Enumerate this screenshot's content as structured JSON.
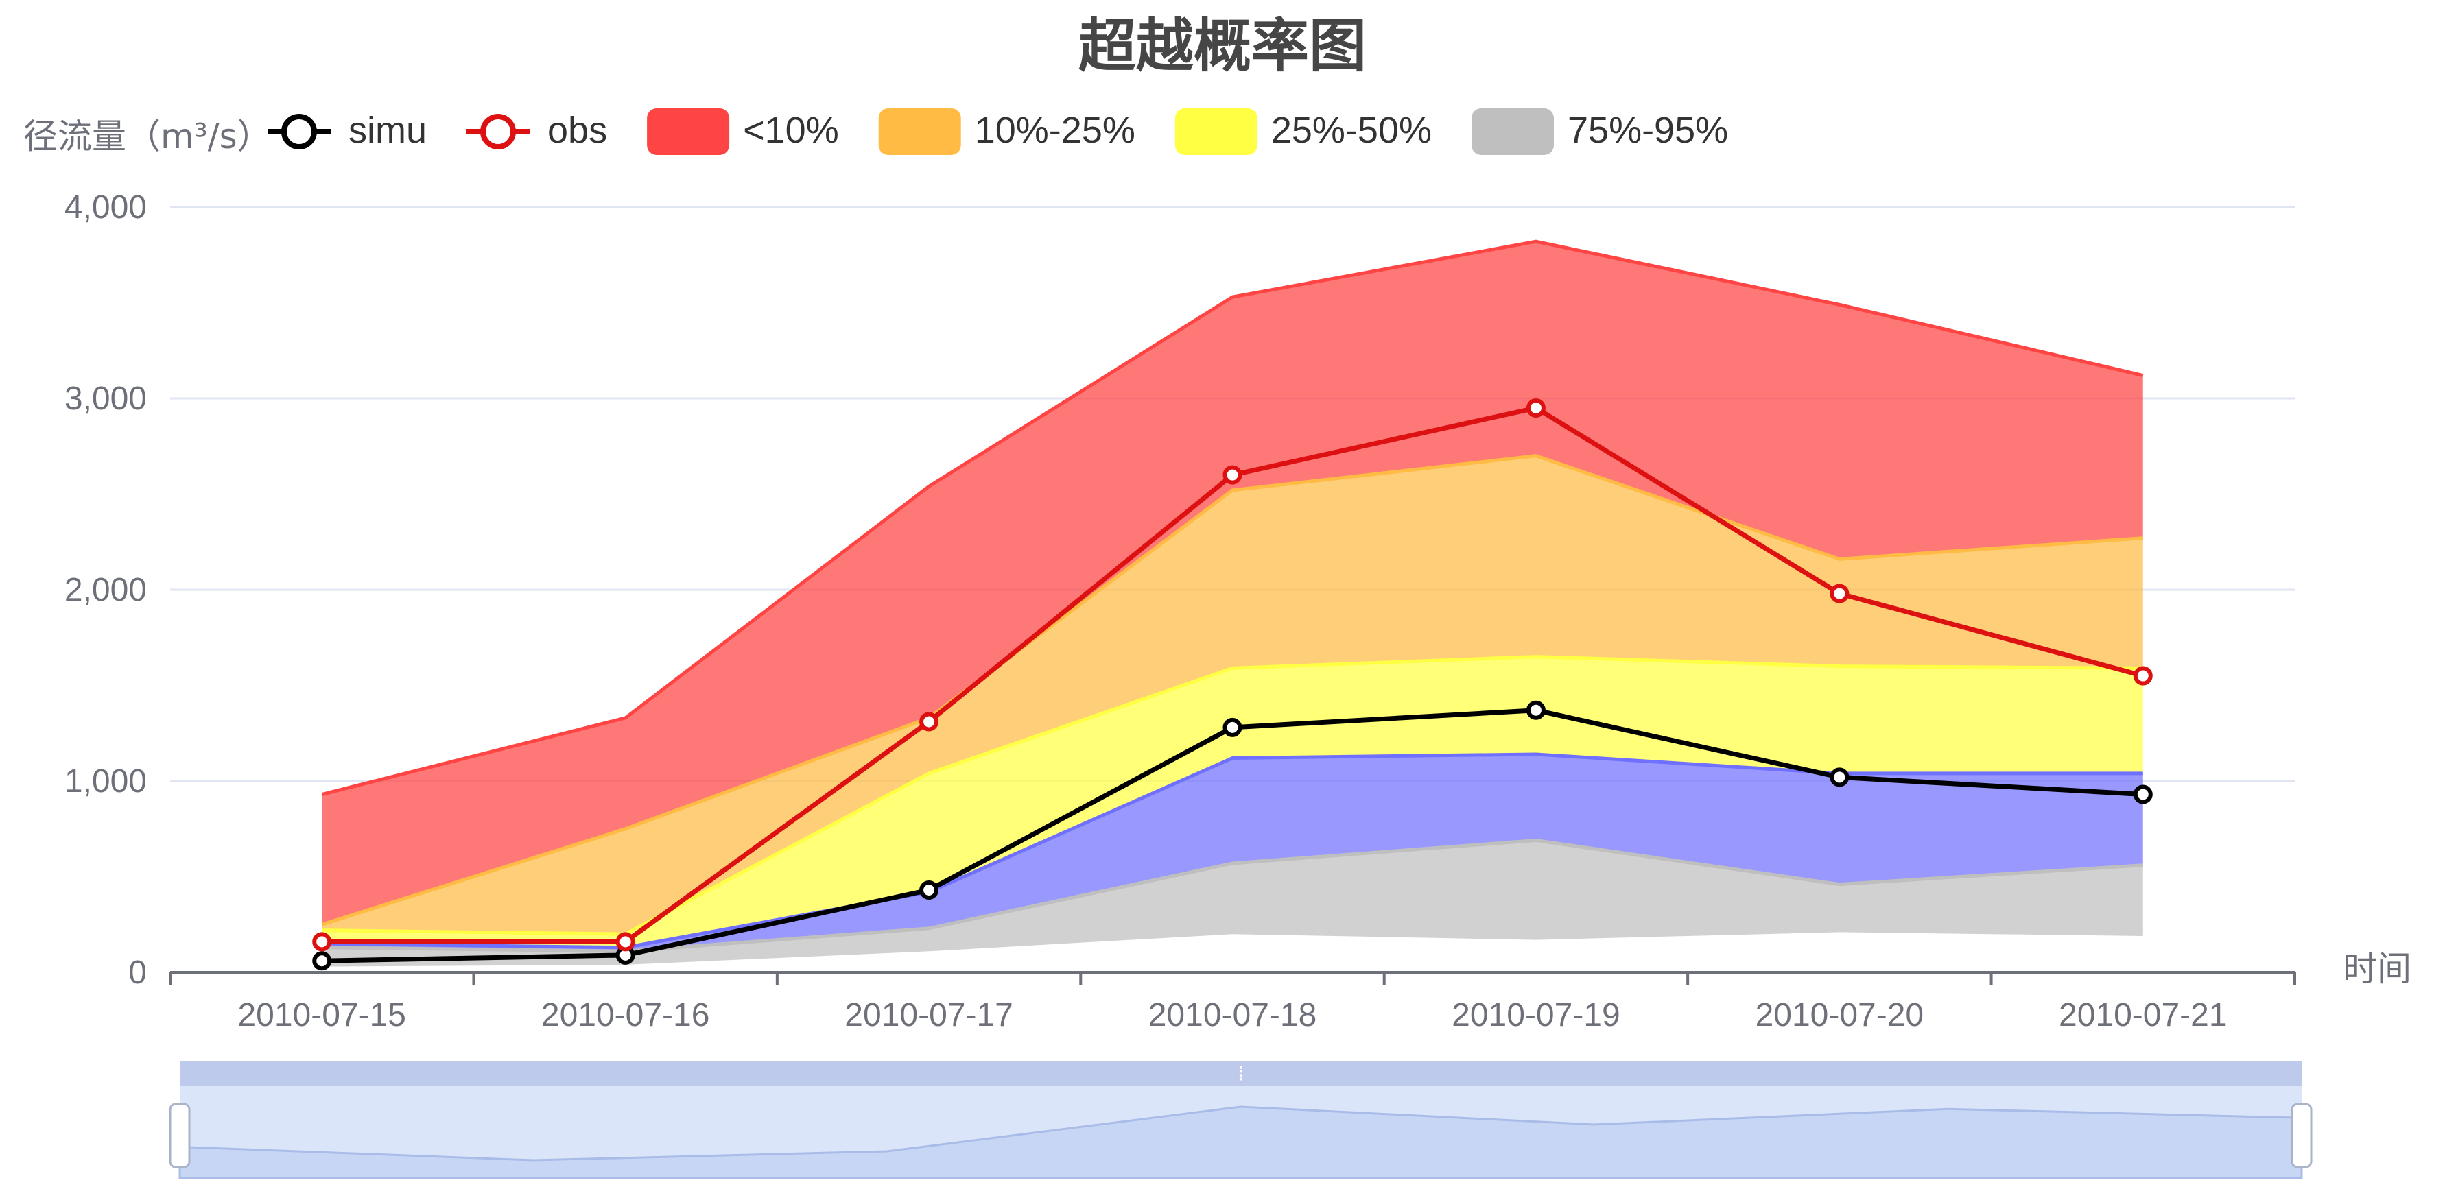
{
  "chart_data": {
    "type": "area",
    "title": "超越概率图",
    "ylabel": "径流量（m³/s）",
    "xlabel": "时间",
    "x": [
      "2010-07-15",
      "2010-07-16",
      "2010-07-17",
      "2010-07-18",
      "2010-07-19",
      "2010-07-20",
      "2010-07-21"
    ],
    "ylim": [
      0,
      4000
    ],
    "yticks": [
      "0",
      "1,000",
      "2,000",
      "3,000",
      "4,000"
    ],
    "grid": true,
    "legend_position": "top",
    "bands": [
      {
        "name": "<10%",
        "color": "#ff4444",
        "lower": [
          250,
          750,
          1330,
          2520,
          2700,
          2160,
          2270
        ],
        "upper": [
          930,
          1330,
          2540,
          3530,
          3820,
          3490,
          3120
        ]
      },
      {
        "name": "10%-25%",
        "color": "#ffbb44",
        "lower": [
          220,
          200,
          1040,
          1590,
          1650,
          1600,
          1590
        ],
        "upper": [
          250,
          750,
          1330,
          2520,
          2700,
          2160,
          2270
        ]
      },
      {
        "name": "25%-50%",
        "color": "#ffff44",
        "lower": [
          150,
          130,
          420,
          1120,
          1140,
          1040,
          1040
        ],
        "upper": [
          220,
          200,
          1040,
          1590,
          1650,
          1600,
          1590
        ]
      },
      {
        "name": "",
        "color": "#7070ff",
        "lower": [
          130,
          110,
          230,
          570,
          690,
          460,
          560
        ],
        "upper": [
          150,
          130,
          420,
          1120,
          1140,
          1040,
          1040
        ]
      },
      {
        "name": "75%-95%",
        "color": "#bfbfbf",
        "lower": [
          30,
          40,
          110,
          200,
          170,
          210,
          190
        ],
        "upper": [
          130,
          110,
          230,
          570,
          690,
          460,
          560
        ]
      }
    ],
    "series": [
      {
        "name": "simu",
        "color": "#000000",
        "values": [
          60,
          90,
          430,
          1280,
          1370,
          1020,
          930
        ]
      },
      {
        "name": "obs",
        "color": "#dd1111",
        "values": [
          160,
          160,
          1310,
          2600,
          2950,
          1980,
          1550
        ]
      }
    ]
  },
  "datazoom": {
    "handle_color": "#aebbe3",
    "fill_color": "#d6e2fa",
    "shadow_values": [
      700,
      400,
      600,
      1600,
      1200,
      1550,
      1350
    ]
  }
}
